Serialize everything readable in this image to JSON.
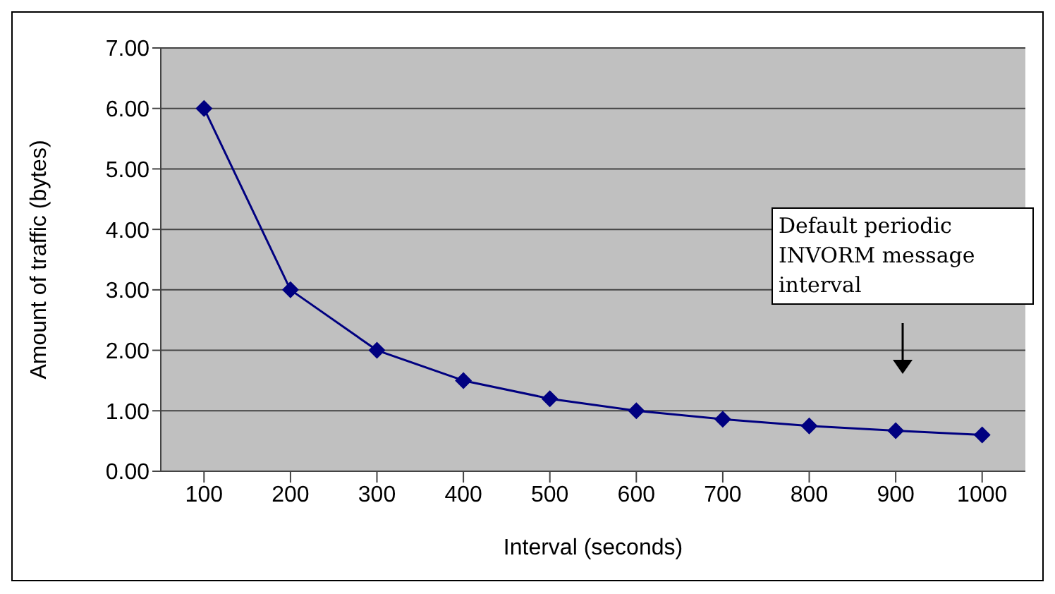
{
  "chart_data": {
    "type": "line",
    "xlabel": "Interval (seconds)",
    "ylabel": "Amount of traffic (bytes)",
    "categories": [
      "100",
      "200",
      "300",
      "400",
      "500",
      "600",
      "700",
      "800",
      "900",
      "1000"
    ],
    "series": [
      {
        "color": "#000080",
        "values": [
          6.0,
          3.0,
          2.0,
          1.5,
          1.2,
          1.0,
          0.86,
          0.75,
          0.67,
          0.6
        ]
      }
    ],
    "ylim": [
      0,
      7
    ],
    "yticks": [
      {
        "value": 0,
        "label": "0.00"
      },
      {
        "value": 1,
        "label": "1.00"
      },
      {
        "value": 2,
        "label": "2.00"
      },
      {
        "value": 3,
        "label": "3.00"
      },
      {
        "value": 4,
        "label": "4.00"
      },
      {
        "value": 5,
        "label": "5.00"
      },
      {
        "value": 6,
        "label": "6.00"
      },
      {
        "value": 7,
        "label": "7.00"
      }
    ],
    "grid": "y",
    "legend": false,
    "marker": "diamond",
    "line_style": "solid",
    "annotations": [
      "Default periodic INVORM message interval"
    ]
  }
}
